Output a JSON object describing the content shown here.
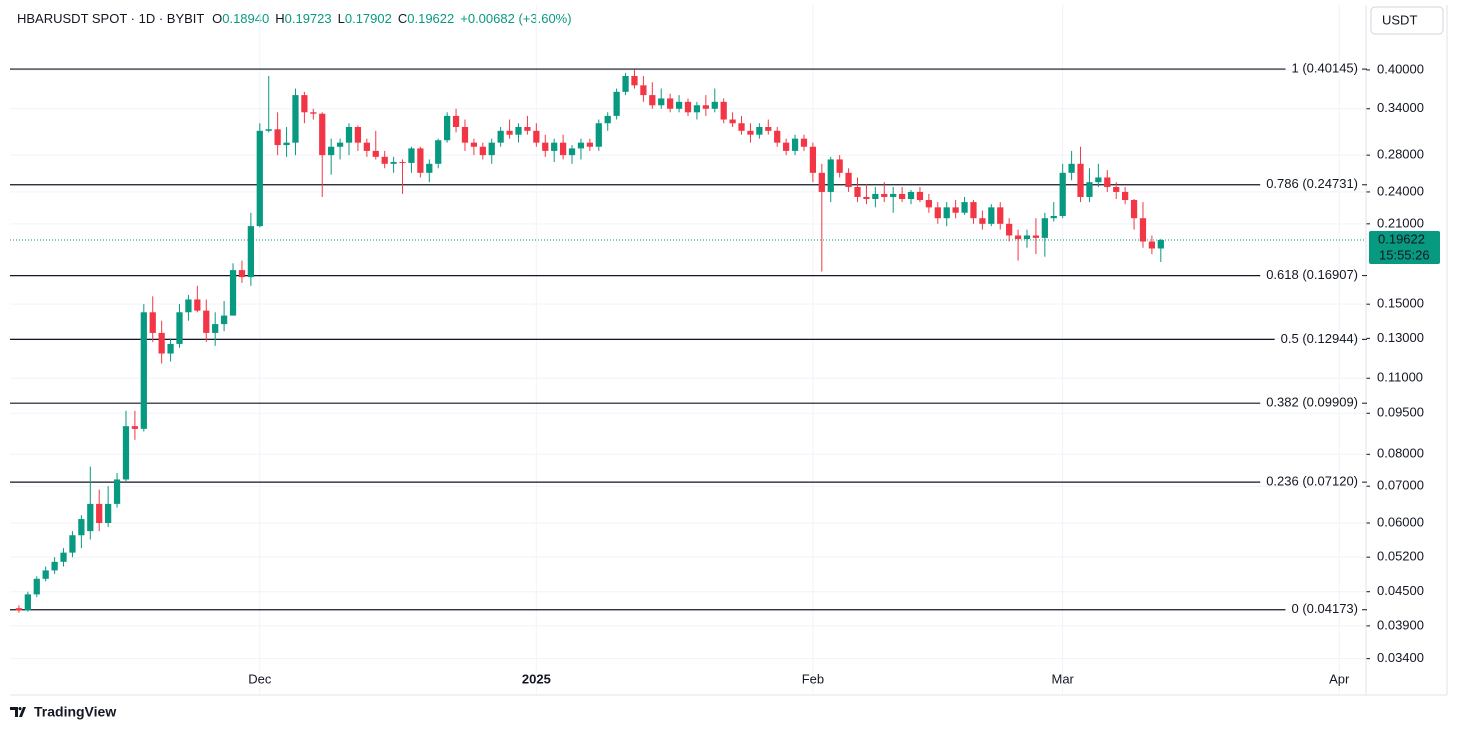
{
  "chart_data": {
    "type": "candlestick",
    "title": "HBARUSDT SPOT · 1D · BYBIT",
    "ohlc_header": [
      {
        "key": "O",
        "value": "0.18940"
      },
      {
        "key": "H",
        "value": "0.19723"
      },
      {
        "key": "L",
        "value": "0.17902"
      },
      {
        "key": "C",
        "value": "0.19622"
      }
    ],
    "change": "+0.00682 (+3.60%)",
    "currency": "USDT",
    "brand": "TradingView",
    "log_scale": true,
    "grid": true,
    "up_color": "#089981",
    "down_color": "#f23645",
    "ylim": [
      0.0292,
      0.525
    ],
    "yticks": [
      {
        "value": 0.4,
        "label": "0.40000"
      },
      {
        "value": 0.34,
        "label": "0.34000"
      },
      {
        "value": 0.28,
        "label": "0.28000"
      },
      {
        "value": 0.24,
        "label": "0.24000"
      },
      {
        "value": 0.21,
        "label": "0.21000"
      },
      {
        "value": 0.15,
        "label": "0.15000"
      },
      {
        "value": 0.13,
        "label": "0.13000"
      },
      {
        "value": 0.11,
        "label": "0.11000"
      },
      {
        "value": 0.095,
        "label": "0.09500"
      },
      {
        "value": 0.08,
        "label": "0.08000"
      },
      {
        "value": 0.07,
        "label": "0.07000"
      },
      {
        "value": 0.06,
        "label": "0.06000"
      },
      {
        "value": 0.052,
        "label": "0.05200"
      },
      {
        "value": 0.045,
        "label": "0.04500"
      },
      {
        "value": 0.039,
        "label": "0.03900"
      },
      {
        "value": 0.034,
        "label": "0.03400"
      }
    ],
    "xlim": [
      -1,
      151
    ],
    "xticks": [
      {
        "value": 27,
        "label": "Dec"
      },
      {
        "value": 58,
        "label": "2025"
      },
      {
        "value": 89,
        "label": "Feb"
      },
      {
        "value": 117,
        "label": "Mar"
      },
      {
        "value": 148,
        "label": "Apr"
      }
    ],
    "last_price": {
      "value": 0.19622,
      "label": "0.19622",
      "countdown": "15:55:26"
    },
    "fib_levels": [
      {
        "value": 0.40145,
        "label": "1 (0.40145)"
      },
      {
        "value": 0.24731,
        "label": "0.786 (0.24731)"
      },
      {
        "value": 0.16907,
        "label": "0.618 (0.16907)"
      },
      {
        "value": 0.12944,
        "label": "0.5 (0.12944)"
      },
      {
        "value": 0.09909,
        "label": "0.382 (0.09909)"
      },
      {
        "value": 0.0712,
        "label": "0.236 (0.07120)"
      },
      {
        "value": 0.04173,
        "label": "0 (0.04173)"
      }
    ],
    "ohlc": [
      [
        0.042,
        0.0425,
        0.0412,
        0.0416
      ],
      [
        0.0416,
        0.045,
        0.0414,
        0.0445
      ],
      [
        0.0445,
        0.048,
        0.044,
        0.0475
      ],
      [
        0.0475,
        0.05,
        0.047,
        0.0492
      ],
      [
        0.0492,
        0.052,
        0.0485,
        0.051
      ],
      [
        0.051,
        0.054,
        0.05,
        0.053
      ],
      [
        0.053,
        0.058,
        0.052,
        0.057
      ],
      [
        0.057,
        0.062,
        0.054,
        0.061
      ],
      [
        0.058,
        0.076,
        0.056,
        0.065
      ],
      [
        0.065,
        0.069,
        0.058,
        0.06
      ],
      [
        0.06,
        0.07,
        0.059,
        0.065
      ],
      [
        0.065,
        0.074,
        0.064,
        0.072
      ],
      [
        0.072,
        0.096,
        0.0715,
        0.09
      ],
      [
        0.09,
        0.096,
        0.085,
        0.089
      ],
      [
        0.089,
        0.15,
        0.088,
        0.145
      ],
      [
        0.145,
        0.155,
        0.128,
        0.133
      ],
      [
        0.133,
        0.14,
        0.117,
        0.122
      ],
      [
        0.122,
        0.13,
        0.118,
        0.127
      ],
      [
        0.127,
        0.15,
        0.125,
        0.145
      ],
      [
        0.145,
        0.156,
        0.14,
        0.153
      ],
      [
        0.153,
        0.162,
        0.145,
        0.146
      ],
      [
        0.146,
        0.153,
        0.128,
        0.133
      ],
      [
        0.133,
        0.145,
        0.126,
        0.138
      ],
      [
        0.138,
        0.152,
        0.134,
        0.143
      ],
      [
        0.143,
        0.178,
        0.143,
        0.173
      ],
      [
        0.173,
        0.18,
        0.164,
        0.168
      ],
      [
        0.168,
        0.22,
        0.162,
        0.208
      ],
      [
        0.208,
        0.32,
        0.207,
        0.31
      ],
      [
        0.31,
        0.39,
        0.308,
        0.312
      ],
      [
        0.312,
        0.335,
        0.28,
        0.292
      ],
      [
        0.292,
        0.315,
        0.278,
        0.295
      ],
      [
        0.295,
        0.37,
        0.28,
        0.36
      ],
      [
        0.36,
        0.365,
        0.32,
        0.335
      ],
      [
        0.335,
        0.34,
        0.325,
        0.333
      ],
      [
        0.333,
        0.335,
        0.235,
        0.28
      ],
      [
        0.28,
        0.3,
        0.258,
        0.29
      ],
      [
        0.29,
        0.3,
        0.275,
        0.295
      ],
      [
        0.295,
        0.32,
        0.28,
        0.315
      ],
      [
        0.315,
        0.317,
        0.285,
        0.295
      ],
      [
        0.295,
        0.3,
        0.278,
        0.285
      ],
      [
        0.285,
        0.31,
        0.275,
        0.278
      ],
      [
        0.278,
        0.285,
        0.265,
        0.27
      ],
      [
        0.27,
        0.278,
        0.26,
        0.272
      ],
      [
        0.272,
        0.275,
        0.238,
        0.271
      ],
      [
        0.271,
        0.29,
        0.26,
        0.288
      ],
      [
        0.288,
        0.29,
        0.255,
        0.26
      ],
      [
        0.26,
        0.275,
        0.25,
        0.27
      ],
      [
        0.27,
        0.3,
        0.265,
        0.298
      ],
      [
        0.298,
        0.335,
        0.295,
        0.33
      ],
      [
        0.33,
        0.34,
        0.308,
        0.315
      ],
      [
        0.315,
        0.325,
        0.285,
        0.295
      ],
      [
        0.295,
        0.3,
        0.28,
        0.29
      ],
      [
        0.29,
        0.295,
        0.275,
        0.28
      ],
      [
        0.28,
        0.3,
        0.27,
        0.295
      ],
      [
        0.295,
        0.315,
        0.29,
        0.31
      ],
      [
        0.31,
        0.325,
        0.3,
        0.305
      ],
      [
        0.305,
        0.32,
        0.295,
        0.315
      ],
      [
        0.315,
        0.33,
        0.305,
        0.31
      ],
      [
        0.31,
        0.32,
        0.29,
        0.295
      ],
      [
        0.295,
        0.305,
        0.278,
        0.285
      ],
      [
        0.285,
        0.3,
        0.272,
        0.295
      ],
      [
        0.295,
        0.305,
        0.275,
        0.28
      ],
      [
        0.28,
        0.292,
        0.27,
        0.288
      ],
      [
        0.288,
        0.3,
        0.275,
        0.295
      ],
      [
        0.295,
        0.3,
        0.285,
        0.29
      ],
      [
        0.29,
        0.325,
        0.285,
        0.32
      ],
      [
        0.32,
        0.335,
        0.31,
        0.33
      ],
      [
        0.33,
        0.37,
        0.325,
        0.365
      ],
      [
        0.365,
        0.395,
        0.36,
        0.39
      ],
      [
        0.39,
        0.401,
        0.37,
        0.375
      ],
      [
        0.375,
        0.39,
        0.35,
        0.36
      ],
      [
        0.36,
        0.38,
        0.34,
        0.345
      ],
      [
        0.345,
        0.37,
        0.34,
        0.355
      ],
      [
        0.355,
        0.362,
        0.335,
        0.34
      ],
      [
        0.34,
        0.36,
        0.335,
        0.35
      ],
      [
        0.35,
        0.355,
        0.33,
        0.335
      ],
      [
        0.335,
        0.35,
        0.325,
        0.345
      ],
      [
        0.345,
        0.36,
        0.33,
        0.34
      ],
      [
        0.34,
        0.37,
        0.335,
        0.35
      ],
      [
        0.35,
        0.355,
        0.32,
        0.325
      ],
      [
        0.325,
        0.335,
        0.315,
        0.32
      ],
      [
        0.32,
        0.33,
        0.305,
        0.31
      ],
      [
        0.31,
        0.32,
        0.295,
        0.305
      ],
      [
        0.305,
        0.32,
        0.3,
        0.315
      ],
      [
        0.315,
        0.325,
        0.305,
        0.31
      ],
      [
        0.31,
        0.315,
        0.29,
        0.295
      ],
      [
        0.295,
        0.3,
        0.28,
        0.285
      ],
      [
        0.285,
        0.305,
        0.28,
        0.3
      ],
      [
        0.3,
        0.305,
        0.285,
        0.29
      ],
      [
        0.29,
        0.295,
        0.25,
        0.26
      ],
      [
        0.26,
        0.27,
        0.172,
        0.24
      ],
      [
        0.24,
        0.278,
        0.23,
        0.275
      ],
      [
        0.275,
        0.28,
        0.255,
        0.26
      ],
      [
        0.26,
        0.265,
        0.24,
        0.245
      ],
      [
        0.245,
        0.255,
        0.23,
        0.235
      ],
      [
        0.235,
        0.248,
        0.228,
        0.233
      ],
      [
        0.233,
        0.245,
        0.225,
        0.238
      ],
      [
        0.238,
        0.25,
        0.23,
        0.235
      ],
      [
        0.235,
        0.245,
        0.22,
        0.238
      ],
      [
        0.238,
        0.245,
        0.23,
        0.233
      ],
      [
        0.233,
        0.242,
        0.228,
        0.24
      ],
      [
        0.24,
        0.245,
        0.23,
        0.232
      ],
      [
        0.232,
        0.238,
        0.22,
        0.225
      ],
      [
        0.225,
        0.23,
        0.21,
        0.215
      ],
      [
        0.215,
        0.23,
        0.208,
        0.225
      ],
      [
        0.225,
        0.232,
        0.215,
        0.22
      ],
      [
        0.22,
        0.235,
        0.218,
        0.23
      ],
      [
        0.23,
        0.232,
        0.21,
        0.215
      ],
      [
        0.215,
        0.222,
        0.205,
        0.21
      ],
      [
        0.21,
        0.228,
        0.208,
        0.225
      ],
      [
        0.225,
        0.23,
        0.205,
        0.21
      ],
      [
        0.21,
        0.215,
        0.195,
        0.2
      ],
      [
        0.2,
        0.205,
        0.18,
        0.197
      ],
      [
        0.197,
        0.205,
        0.19,
        0.2
      ],
      [
        0.2,
        0.215,
        0.185,
        0.198
      ],
      [
        0.198,
        0.22,
        0.183,
        0.215
      ],
      [
        0.215,
        0.23,
        0.212,
        0.217
      ],
      [
        0.217,
        0.27,
        0.215,
        0.26
      ],
      [
        0.26,
        0.285,
        0.252,
        0.27
      ],
      [
        0.27,
        0.29,
        0.23,
        0.235
      ],
      [
        0.235,
        0.265,
        0.23,
        0.25
      ],
      [
        0.25,
        0.27,
        0.245,
        0.255
      ],
      [
        0.255,
        0.263,
        0.24,
        0.245
      ],
      [
        0.245,
        0.25,
        0.233,
        0.24
      ],
      [
        0.24,
        0.245,
        0.228,
        0.232
      ],
      [
        0.232,
        0.233,
        0.205,
        0.215
      ],
      [
        0.215,
        0.23,
        0.19,
        0.195
      ],
      [
        0.195,
        0.2,
        0.185,
        0.1894
      ],
      [
        0.1894,
        0.19723,
        0.17902,
        0.19622
      ]
    ]
  }
}
